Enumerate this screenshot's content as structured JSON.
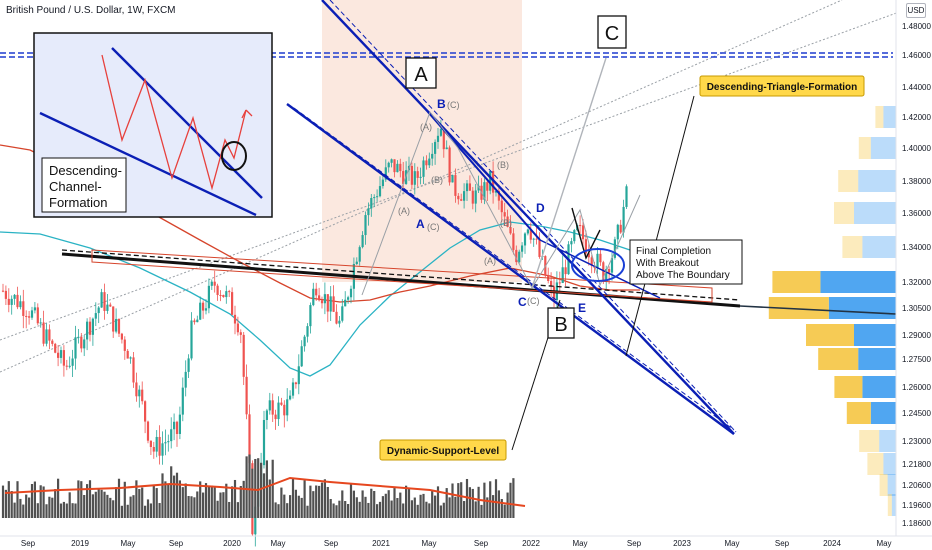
{
  "header": {
    "symbol_line": "British Pound / U.S. Dollar, 1W, FXCM",
    "currency_badge": "USD"
  },
  "annotations": {
    "inset_label": "Descending-\nChannel-\nFormation",
    "point_A_top": "A",
    "point_B_box": "B",
    "point_C_box": "C",
    "wave_B_blue": "B",
    "wave_A_blue": "A",
    "wave_C_blue": "C",
    "wave_D_blue": "D",
    "wave_E_blue": "E",
    "sub_waves": [
      "(C)",
      "(A)",
      "(B)",
      "(B)",
      "(A)",
      "(C)",
      "(B)",
      "(A)",
      "(C)"
    ],
    "completion_note": "Final Completion\nWith Breakout\nAbove The Boundary",
    "triangle_label": "Descending-Triangle-Formation",
    "support_label": "Dynamic-Support-Level"
  },
  "colors": {
    "up_candle": "#26a69a",
    "down_candle": "#ef5350",
    "pattern_blue": "#0b1fb5",
    "horizontal_level": "#1f3ccf",
    "label_bg": "#ffd84a",
    "inset_bg": "#e6ebfb",
    "zone_fill": "#f7cdb8",
    "ma_teal": "#2ab3c4",
    "ma_red": "#d6452c",
    "volume_bar": "#505050",
    "volume_ma": "#e6471f",
    "vp_blue": "#3d9cf0",
    "vp_yellow": "#f5c542"
  },
  "chart_data": {
    "type": "candlestick",
    "interval": "1W",
    "ylim": [
      1.16,
      1.49
    ],
    "y_axis_ticks": [
      "1.48000",
      "1.46000",
      "1.44000",
      "1.42000",
      "1.40000",
      "1.38000",
      "1.36000",
      "1.34000",
      "1.32000",
      "1.30500",
      "1.29000",
      "1.27500",
      "1.26000",
      "1.24500",
      "1.23000",
      "1.21800",
      "1.20600",
      "1.19600",
      "1.18600"
    ],
    "x_axis_ticks": [
      "Sep",
      "2019",
      "May",
      "Sep",
      "2020",
      "May",
      "Sep",
      "2021",
      "May",
      "Sep",
      "2022",
      "May",
      "Sep",
      "2023",
      "May",
      "Sep",
      "2024",
      "May"
    ],
    "x_range": [
      "2018-06",
      "2024-06"
    ],
    "horizontal_level": 1.46,
    "price_path": [
      [
        "2018-07",
        1.315
      ],
      [
        "2018-09",
        1.305
      ],
      [
        "2018-12",
        1.27
      ],
      [
        "2019-01",
        1.285
      ],
      [
        "2019-03",
        1.31
      ],
      [
        "2019-05",
        1.28
      ],
      [
        "2019-07",
        1.225
      ],
      [
        "2019-09",
        1.235
      ],
      [
        "2019-10",
        1.29
      ],
      [
        "2019-12",
        1.32
      ],
      [
        "2020-01",
        1.31
      ],
      [
        "2020-02",
        1.295
      ],
      [
        "2020-03",
        1.18
      ],
      [
        "2020-04",
        1.245
      ],
      [
        "2020-06",
        1.25
      ],
      [
        "2020-08",
        1.32
      ],
      [
        "2020-10",
        1.295
      ],
      [
        "2020-12",
        1.36
      ],
      [
        "2021-02",
        1.39
      ],
      [
        "2021-04",
        1.38
      ],
      [
        "2021-06",
        1.415
      ],
      [
        "2021-07",
        1.375
      ],
      [
        "2021-09",
        1.37
      ],
      [
        "2021-10",
        1.38
      ],
      [
        "2021-12",
        1.335
      ],
      [
        "2022-01",
        1.355
      ],
      [
        "2022-03",
        1.31
      ],
      [
        "2022-05",
        1.35
      ],
      [
        "2022-07",
        1.325
      ],
      [
        "2022-08",
        1.34
      ],
      [
        "2022-09",
        1.375
      ]
    ],
    "pattern_points": [
      {
        "label": "B",
        "x": "2021-06",
        "y": 1.42
      },
      {
        "label": "A",
        "x": "2021-03",
        "y": 1.355
      },
      {
        "label": "C",
        "x": "2021-12",
        "y": 1.315
      },
      {
        "label": "D",
        "x": "2022-02",
        "y": 1.36
      },
      {
        "label": "E",
        "x": "2022-06",
        "y": 1.305
      }
    ],
    "volume_profile_bins": [
      {
        "price": 1.42,
        "blue": 3,
        "yellow": 2
      },
      {
        "price": 1.4,
        "blue": 6,
        "yellow": 3
      },
      {
        "price": 1.38,
        "blue": 9,
        "yellow": 5
      },
      {
        "price": 1.36,
        "blue": 10,
        "yellow": 5
      },
      {
        "price": 1.34,
        "blue": 8,
        "yellow": 5
      },
      {
        "price": 1.32,
        "blue": 18,
        "yellow": 12
      },
      {
        "price": 1.305,
        "blue": 16,
        "yellow": 15
      },
      {
        "price": 1.29,
        "blue": 10,
        "yellow": 12
      },
      {
        "price": 1.275,
        "blue": 9,
        "yellow": 10
      },
      {
        "price": 1.26,
        "blue": 8,
        "yellow": 7
      },
      {
        "price": 1.245,
        "blue": 6,
        "yellow": 6
      },
      {
        "price": 1.23,
        "blue": 4,
        "yellow": 5
      },
      {
        "price": 1.218,
        "blue": 3,
        "yellow": 4
      },
      {
        "price": 1.206,
        "blue": 2,
        "yellow": 2
      },
      {
        "price": 1.196,
        "blue": 1,
        "yellow": 1
      }
    ]
  }
}
